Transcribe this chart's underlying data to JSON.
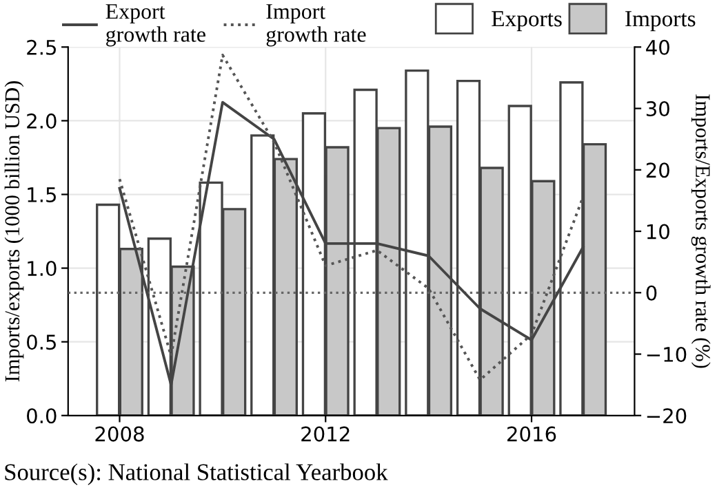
{
  "chart_data": {
    "type": "bar",
    "x": [
      2008,
      2009,
      2010,
      2011,
      2012,
      2013,
      2014,
      2015,
      2016,
      2017
    ],
    "series": [
      {
        "name": "Exports",
        "color": "#ffffff",
        "values": [
          1.43,
          1.2,
          1.58,
          1.9,
          2.05,
          2.21,
          2.34,
          2.27,
          2.1,
          2.26
        ]
      },
      {
        "name": "Imports",
        "color": "#c8c8c8",
        "values": [
          1.13,
          1.01,
          1.4,
          1.74,
          1.82,
          1.95,
          1.96,
          1.68,
          1.59,
          1.84
        ]
      },
      {
        "name": "Export\ngrowth rate",
        "type": "line",
        "axis": "y2",
        "line_style": "solid",
        "color": "#444444",
        "values": [
          17,
          -15,
          31,
          25,
          8,
          8,
          6,
          -2.6,
          -7.7,
          7.4
        ]
      },
      {
        "name": "Import\ngrowth rate",
        "type": "line",
        "axis": "y2",
        "line_style": "dotted",
        "color": "#555555",
        "values": [
          18.5,
          -10.3,
          38.7,
          24.5,
          4.4,
          6.9,
          0.7,
          -14.2,
          -6.8,
          15.6
        ]
      }
    ],
    "xlim": [
      2007,
      2018
    ],
    "xticks": [
      2008,
      2012,
      2016
    ],
    "ylim": [
      0,
      2.5
    ],
    "yticks": [
      {
        "value": 0,
        "label": "0.0"
      },
      0.5,
      {
        "value": 1,
        "label": "1.0"
      },
      1.5,
      {
        "value": 2,
        "label": "2.0"
      },
      2.5
    ],
    "y2lim": [
      -20,
      40
    ],
    "y2ticks": [
      -20,
      -10,
      0,
      10,
      20,
      30,
      40
    ],
    "ylabel": "Imports/exports (1000 billion USD)",
    "y2label": "Imports/Exports growth rate (%)",
    "ref_lines": [
      {
        "axis": "y2",
        "value": 0,
        "color": "#666666",
        "line_style": "dotted"
      }
    ],
    "grid": true,
    "legend": "top",
    "annotations": [
      "Source(s): National Statistical Yearbook"
    ]
  }
}
